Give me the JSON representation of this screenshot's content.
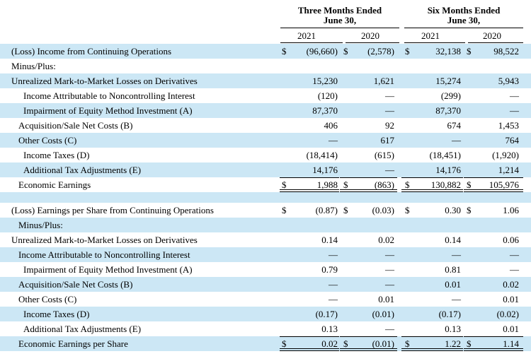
{
  "header": {
    "three_months_line1": "Three Months Ended",
    "three_months_line2": "June 30,",
    "six_months_line1": "Six Months Ended",
    "six_months_line2": "June 30,",
    "years": [
      "2021",
      "2020",
      "2021",
      "2020"
    ]
  },
  "rows": [
    {
      "label": "(Loss) Income from Continuing Operations",
      "indent": 0,
      "shaded": true,
      "dollar": true,
      "values": [
        "(96,660)",
        "(2,578)",
        "32,138",
        "98,522"
      ]
    },
    {
      "label": "Minus/Plus:",
      "indent": 0,
      "shaded": false,
      "dollar": false,
      "values": [
        "",
        "",
        "",
        ""
      ]
    },
    {
      "label": "Unrealized Mark-to-Market Losses on Derivatives",
      "indent": 0,
      "shaded": true,
      "dollar": false,
      "values": [
        "15,230",
        "1,621",
        "15,274",
        "5,943"
      ]
    },
    {
      "label": "Income Attributable to Noncontrolling Interest",
      "indent": 2,
      "shaded": false,
      "dollar": false,
      "values": [
        "(120)",
        "—",
        "(299)",
        "—"
      ]
    },
    {
      "label": "Impairment of Equity Method Investment (A)",
      "indent": 2,
      "shaded": true,
      "dollar": false,
      "values": [
        "87,370",
        "—",
        "87,370",
        "—"
      ]
    },
    {
      "label": "Acquisition/Sale Net Costs (B)",
      "indent": 1,
      "shaded": false,
      "dollar": false,
      "values": [
        "406",
        "92",
        "674",
        "1,453"
      ]
    },
    {
      "label": "Other Costs (C)",
      "indent": 1,
      "shaded": true,
      "dollar": false,
      "values": [
        "—",
        "617",
        "—",
        "764"
      ]
    },
    {
      "label": "Income Taxes (D)",
      "indent": 2,
      "shaded": false,
      "dollar": false,
      "values": [
        "(18,414)",
        "(615)",
        "(18,451)",
        "(1,920)"
      ]
    },
    {
      "label": "Additional Tax Adjustments (E)",
      "indent": 2,
      "shaded": true,
      "dollar": false,
      "values": [
        "14,176",
        "—",
        "14,176",
        "1,214"
      ]
    },
    {
      "label": "Economic Earnings",
      "indent": 1,
      "shaded": false,
      "dollar": true,
      "total": true,
      "values": [
        "1,988",
        "(863)",
        "130,882",
        "105,976"
      ]
    },
    {
      "label": "",
      "indent": 0,
      "shaded": true,
      "dollar": false,
      "spacer": true,
      "values": [
        "",
        "",
        "",
        ""
      ]
    },
    {
      "label": "(Loss) Earnings per Share from Continuing Operations",
      "indent": 0,
      "shaded": false,
      "dollar": true,
      "values": [
        "(0.87)",
        "(0.03)",
        "0.30",
        "1.06"
      ]
    },
    {
      "label": "Minus/Plus:",
      "indent": 1,
      "shaded": true,
      "dollar": false,
      "values": [
        "",
        "",
        "",
        ""
      ]
    },
    {
      "label": "Unrealized Mark-to-Market Losses on Derivatives",
      "indent": 0,
      "shaded": false,
      "dollar": false,
      "values": [
        "0.14",
        "0.02",
        "0.14",
        "0.06"
      ]
    },
    {
      "label": "Income Attributable to Noncontrolling Interest",
      "indent": 1,
      "shaded": true,
      "dollar": false,
      "values": [
        "—",
        "—",
        "—",
        "—"
      ]
    },
    {
      "label": "Impairment of Equity Method Investment (A)",
      "indent": 2,
      "shaded": false,
      "dollar": false,
      "values": [
        "0.79",
        "—",
        "0.81",
        "—"
      ]
    },
    {
      "label": "Acquisition/Sale Net Costs (B)",
      "indent": 1,
      "shaded": true,
      "dollar": false,
      "values": [
        "—",
        "—",
        "0.01",
        "0.02"
      ]
    },
    {
      "label": "Other Costs (C)",
      "indent": 1,
      "shaded": false,
      "dollar": false,
      "values": [
        "—",
        "0.01",
        "—",
        "0.01"
      ]
    },
    {
      "label": "Income Taxes (D)",
      "indent": 2,
      "shaded": true,
      "dollar": false,
      "values": [
        "(0.17)",
        "(0.01)",
        "(0.17)",
        "(0.02)"
      ]
    },
    {
      "label": "Additional Tax Adjustments (E)",
      "indent": 2,
      "shaded": false,
      "dollar": false,
      "values": [
        "0.13",
        "—",
        "0.13",
        "0.01"
      ]
    },
    {
      "label": "Economic Earnings per Share",
      "indent": 1,
      "shaded": true,
      "dollar": true,
      "total": true,
      "values": [
        "0.02",
        "(0.01)",
        "1.22",
        "1.14"
      ]
    }
  ],
  "currency_symbol": "$",
  "colors": {
    "shade": "#cce7f5"
  }
}
